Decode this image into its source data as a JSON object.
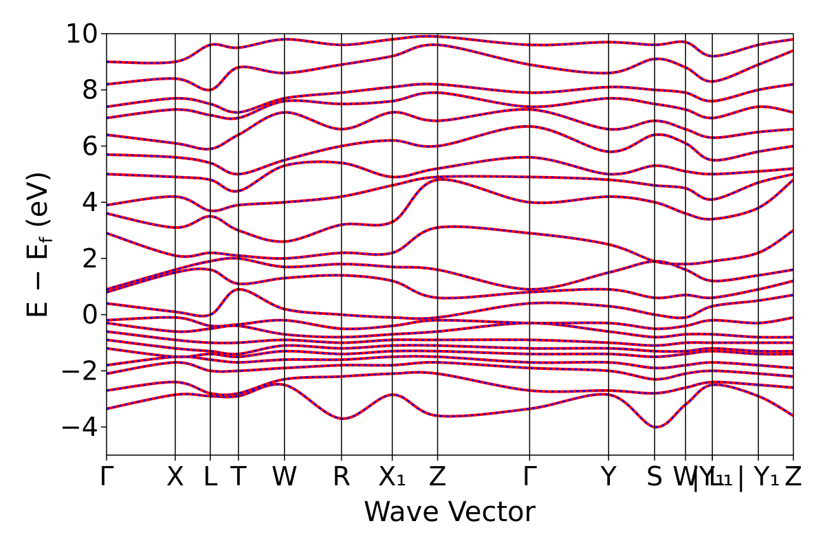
{
  "chart_data": {
    "type": "line",
    "title": "",
    "xlabel": "Wave Vector",
    "ylabel": "E − Eₑ",
    "ylabel_main": "E − E",
    "ylabel_sub": "f",
    "ylabel_unit": " (eV)",
    "ylim": [
      -5,
      10
    ],
    "yticks": [
      -4,
      -2,
      0,
      2,
      4,
      6,
      8,
      10
    ],
    "ytick_labels": [
      "−4",
      "−2",
      "0",
      "2",
      "4",
      "6",
      "8",
      "10"
    ],
    "xlim": [
      0,
      1
    ],
    "kpoints": [
      {
        "x": 0.0,
        "label": "Γ"
      },
      {
        "x": 0.1,
        "label": "X"
      },
      {
        "x": 0.151,
        "label": "L"
      },
      {
        "x": 0.192,
        "label": "T"
      },
      {
        "x": 0.259,
        "label": "W"
      },
      {
        "x": 0.342,
        "label": "R"
      },
      {
        "x": 0.416,
        "label": "X₁"
      },
      {
        "x": 0.482,
        "label": "Z"
      },
      {
        "x": 0.616,
        "label": "Γ"
      },
      {
        "x": 0.731,
        "label": "Y"
      },
      {
        "x": 0.798,
        "label": "S"
      },
      {
        "x": 0.843,
        "label": "W"
      },
      {
        "x": 0.882,
        "label": "| L₁"
      },
      {
        "x": 0.882,
        "label": "Y₁"
      },
      {
        "x": 0.949,
        "label": "| Y₁"
      },
      {
        "x": 1.0,
        "label": "Z"
      }
    ],
    "grid": false,
    "series_colors": [
      "#ff0000",
      "#0000ff"
    ],
    "series": [
      {
        "name": "",
        "style": "solid",
        "bands": [
          {
            "x": [
              0,
              0.1,
              0.151,
              0.192,
              0.259,
              0.342,
              0.416,
              0.482,
              0.616,
              0.731,
              0.798,
              0.843,
              0.882,
              0.949,
              1
            ],
            "y": [
              -3.35,
              -2.85,
              -2.9,
              -2.9,
              -2.5,
              -3.7,
              -2.85,
              -3.6,
              -3.35,
              -2.85,
              -4.0,
              -3.2,
              -2.5,
              -2.9,
              -3.6
            ]
          },
          {
            "x": [
              0,
              0.1,
              0.151,
              0.192,
              0.259,
              0.342,
              0.416,
              0.482,
              0.616,
              0.731,
              0.798,
              0.843,
              0.882,
              0.949,
              1
            ],
            "y": [
              -2.7,
              -2.4,
              -2.8,
              -2.8,
              -2.3,
              -2.2,
              -2.1,
              -2.1,
              -2.7,
              -2.7,
              -2.8,
              -2.6,
              -2.4,
              -2.5,
              -2.6
            ]
          },
          {
            "x": [
              0,
              0.1,
              0.151,
              0.192,
              0.259,
              0.342,
              0.416,
              0.482,
              0.616,
              0.731,
              0.798,
              0.843,
              0.882,
              0.949,
              1
            ],
            "y": [
              -2.1,
              -1.7,
              -2.0,
              -2.0,
              -1.9,
              -1.8,
              -1.8,
              -1.7,
              -1.9,
              -2.0,
              -2.3,
              -2.1,
              -2.0,
              -2.1,
              -2.2
            ]
          },
          {
            "x": [
              0,
              0.1,
              0.151,
              0.192,
              0.259,
              0.342,
              0.416,
              0.482,
              0.616,
              0.731,
              0.798,
              0.843,
              0.882,
              0.949,
              1
            ],
            "y": [
              -1.8,
              -1.5,
              -1.6,
              -1.7,
              -1.6,
              -1.6,
              -1.5,
              -1.5,
              -1.7,
              -1.7,
              -1.9,
              -1.8,
              -1.7,
              -1.8,
              -1.9
            ]
          },
          {
            "x": [
              0,
              0.1,
              0.151,
              0.192,
              0.259,
              0.342,
              0.416,
              0.482,
              0.616,
              0.731,
              0.798,
              0.843,
              0.882,
              0.949,
              1
            ],
            "y": [
              -1.2,
              -1.5,
              -1.4,
              -1.5,
              -1.3,
              -1.4,
              -1.3,
              -1.3,
              -1.4,
              -1.4,
              -1.5,
              -1.4,
              -1.3,
              -1.4,
              -1.4
            ]
          },
          {
            "x": [
              0,
              0.1,
              0.151,
              0.192,
              0.259,
              0.342,
              0.416,
              0.482,
              0.616,
              0.731,
              0.798,
              0.843,
              0.882,
              0.949,
              1
            ],
            "y": [
              -0.9,
              -1.2,
              -1.3,
              -1.4,
              -1.1,
              -1.2,
              -1.1,
              -1.1,
              -1.2,
              -1.2,
              -1.3,
              -1.3,
              -1.2,
              -1.3,
              -1.3
            ]
          },
          {
            "x": [
              0,
              0.1,
              0.151,
              0.192,
              0.259,
              0.342,
              0.416,
              0.482,
              0.616,
              0.731,
              0.798,
              0.843,
              0.882,
              0.949,
              1
            ],
            "y": [
              -0.6,
              -0.9,
              -1.0,
              -1.0,
              -0.9,
              -1.0,
              -0.9,
              -0.9,
              -0.9,
              -1.0,
              -1.1,
              -1.0,
              -1.0,
              -1.0,
              -1.0
            ]
          },
          {
            "x": [
              0,
              0.1,
              0.151,
              0.192,
              0.259,
              0.342,
              0.416,
              0.482,
              0.616,
              0.731,
              0.798,
              0.843,
              0.882,
              0.949,
              1
            ],
            "y": [
              -0.3,
              -0.6,
              -0.5,
              -0.4,
              -0.7,
              -0.8,
              -0.7,
              -0.6,
              -0.3,
              -0.6,
              -0.8,
              -0.7,
              -0.7,
              -0.8,
              -0.8
            ]
          },
          {
            "x": [
              0,
              0.1,
              0.151,
              0.192,
              0.259,
              0.342,
              0.416,
              0.482,
              0.616,
              0.731,
              0.798,
              0.843,
              0.882,
              0.949,
              1
            ],
            "y": [
              -0.2,
              -0.1,
              -0.4,
              -0.35,
              -0.2,
              -0.5,
              -0.4,
              -0.2,
              -0.3,
              -0.3,
              -0.5,
              -0.4,
              -0.2,
              -0.3,
              -0.1
            ]
          },
          {
            "x": [
              0,
              0.1,
              0.151,
              0.192,
              0.259,
              0.342,
              0.416,
              0.482,
              0.616,
              0.731,
              0.798,
              0.843,
              0.882,
              0.949,
              1
            ],
            "y": [
              0.4,
              0.1,
              0.0,
              0.9,
              0.2,
              0.0,
              -0.1,
              -0.1,
              0.4,
              0.3,
              0.0,
              -0.1,
              0.3,
              0.5,
              0.7
            ]
          },
          {
            "x": [
              0,
              0.1,
              0.151,
              0.192,
              0.259,
              0.342,
              0.416,
              0.482,
              0.616,
              0.731,
              0.798,
              0.843,
              0.882,
              0.949,
              1
            ],
            "y": [
              0.8,
              1.5,
              1.6,
              1.1,
              1.3,
              1.4,
              1.2,
              0.6,
              0.8,
              0.9,
              0.6,
              0.7,
              0.6,
              0.9,
              1.2
            ]
          },
          {
            "x": [
              0,
              0.1,
              0.151,
              0.192,
              0.259,
              0.342,
              0.416,
              0.482,
              0.616,
              0.731,
              0.798,
              0.843,
              0.882,
              0.949,
              1
            ],
            "y": [
              0.9,
              1.6,
              1.9,
              2.0,
              1.7,
              1.8,
              1.7,
              1.6,
              0.9,
              1.5,
              1.9,
              1.6,
              1.2,
              1.4,
              1.6
            ]
          },
          {
            "x": [
              0,
              0.1,
              0.151,
              0.192,
              0.259,
              0.342,
              0.416,
              0.482,
              0.616,
              0.731,
              0.798,
              0.843,
              0.882,
              0.949,
              1
            ],
            "y": [
              2.9,
              2.1,
              2.2,
              2.1,
              2.0,
              2.2,
              2.2,
              3.1,
              2.9,
              2.5,
              1.9,
              1.8,
              1.9,
              2.2,
              3.0
            ]
          },
          {
            "x": [
              0,
              0.1,
              0.151,
              0.192,
              0.259,
              0.342,
              0.416,
              0.482,
              0.616,
              0.731,
              0.798,
              0.843,
              0.882,
              0.949,
              1
            ],
            "y": [
              3.6,
              3.1,
              3.5,
              3.0,
              2.6,
              3.2,
              3.3,
              4.8,
              4.0,
              4.2,
              4.0,
              3.6,
              3.4,
              3.8,
              4.8
            ]
          },
          {
            "x": [
              0,
              0.1,
              0.151,
              0.192,
              0.259,
              0.342,
              0.416,
              0.482,
              0.616,
              0.731,
              0.798,
              0.843,
              0.882,
              0.949,
              1
            ],
            "y": [
              3.9,
              4.2,
              3.7,
              3.9,
              4.0,
              4.2,
              4.6,
              4.9,
              4.9,
              4.8,
              4.6,
              4.5,
              4.1,
              4.7,
              5.0
            ]
          },
          {
            "x": [
              0,
              0.1,
              0.151,
              0.192,
              0.259,
              0.342,
              0.416,
              0.482,
              0.616,
              0.731,
              0.798,
              0.843,
              0.882,
              0.949,
              1
            ],
            "y": [
              5.0,
              4.9,
              4.8,
              4.4,
              5.3,
              5.4,
              4.9,
              5.2,
              5.6,
              5.0,
              5.3,
              5.1,
              5.0,
              5.1,
              5.2
            ]
          },
          {
            "x": [
              0,
              0.1,
              0.151,
              0.192,
              0.259,
              0.342,
              0.416,
              0.482,
              0.616,
              0.731,
              0.798,
              0.843,
              0.882,
              0.949,
              1
            ],
            "y": [
              5.7,
              5.6,
              5.4,
              5.0,
              5.5,
              6.0,
              6.2,
              6.0,
              6.7,
              5.8,
              6.4,
              6.1,
              5.5,
              5.8,
              6.0
            ]
          },
          {
            "x": [
              0,
              0.1,
              0.151,
              0.192,
              0.259,
              0.342,
              0.416,
              0.482,
              0.616,
              0.731,
              0.798,
              0.843,
              0.882,
              0.949,
              1
            ],
            "y": [
              6.4,
              6.1,
              5.9,
              6.4,
              7.2,
              6.6,
              7.2,
              6.9,
              7.3,
              6.6,
              6.9,
              6.6,
              6.3,
              6.5,
              6.6
            ]
          },
          {
            "x": [
              0,
              0.1,
              0.151,
              0.192,
              0.259,
              0.342,
              0.416,
              0.482,
              0.616,
              0.731,
              0.798,
              0.843,
              0.882,
              0.949,
              1
            ],
            "y": [
              7.0,
              7.3,
              7.1,
              7.0,
              7.6,
              7.5,
              7.6,
              7.9,
              7.4,
              7.7,
              7.5,
              7.3,
              7.0,
              7.4,
              7.2
            ]
          },
          {
            "x": [
              0,
              0.1,
              0.151,
              0.192,
              0.259,
              0.342,
              0.416,
              0.482,
              0.616,
              0.731,
              0.798,
              0.843,
              0.882,
              0.949,
              1
            ],
            "y": [
              7.4,
              7.7,
              7.5,
              7.2,
              7.7,
              7.9,
              8.1,
              8.2,
              7.9,
              8.1,
              8.0,
              7.9,
              7.6,
              8.0,
              8.2
            ]
          },
          {
            "x": [
              0,
              0.1,
              0.151,
              0.192,
              0.259,
              0.342,
              0.416,
              0.482,
              0.616,
              0.731,
              0.798,
              0.843,
              0.882,
              0.949,
              1
            ],
            "y": [
              8.2,
              8.4,
              8.0,
              8.8,
              8.6,
              8.9,
              9.2,
              9.6,
              8.9,
              8.6,
              9.1,
              8.8,
              8.3,
              8.9,
              9.4
            ]
          },
          {
            "x": [
              0,
              0.1,
              0.151,
              0.192,
              0.259,
              0.342,
              0.416,
              0.482,
              0.616,
              0.731,
              0.798,
              0.843,
              0.882,
              0.949,
              1
            ],
            "y": [
              9.0,
              9.0,
              9.6,
              9.5,
              9.8,
              9.6,
              9.8,
              9.9,
              9.6,
              9.7,
              9.6,
              9.7,
              9.2,
              9.6,
              9.8
            ]
          }
        ]
      },
      {
        "name": "",
        "style": "dashed",
        "same_bands_as": 0
      }
    ]
  }
}
